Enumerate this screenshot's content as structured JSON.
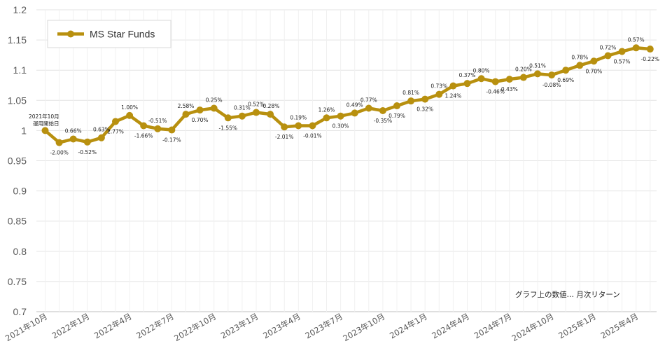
{
  "chart_data": {
    "type": "line",
    "title": "",
    "xlabel": "",
    "ylabel": "",
    "ylim": [
      0.7,
      1.2
    ],
    "yticks": [
      "0.7",
      "0.75",
      "0.8",
      "0.85",
      "0.9",
      "0.95",
      "1",
      "1.05",
      "1.1",
      "1.15",
      "1.2"
    ],
    "grid": true,
    "legend_position": "top-left",
    "x_tick_labels": [
      "2021年10月",
      "2022年1月",
      "2022年4月",
      "2022年7月",
      "2022年10月",
      "2023年1月",
      "2023年4月",
      "2023年7月",
      "2023年10月",
      "2024年1月",
      "2024年4月",
      "2024年7月",
      "2024年10月",
      "2025年1月",
      "2025年4月"
    ],
    "annotations": {
      "start": [
        "2021年10月",
        "運用開始日"
      ],
      "note": "グラフ上の数値… 月次リターン"
    },
    "series": [
      {
        "name": "MS Star Funds",
        "color": "#B8900F",
        "x": [
          "2021-10",
          "2021-11",
          "2021-12",
          "2022-01",
          "2022-02",
          "2022-03",
          "2022-04",
          "2022-05",
          "2022-06",
          "2022-07",
          "2022-08",
          "2022-09",
          "2022-10",
          "2022-11",
          "2022-12",
          "2023-01",
          "2023-02",
          "2023-03",
          "2023-04",
          "2023-05",
          "2023-06",
          "2023-07",
          "2023-08",
          "2023-09",
          "2023-10",
          "2023-11",
          "2023-12",
          "2024-01",
          "2024-02",
          "2024-03",
          "2024-04",
          "2024-05",
          "2024-06",
          "2024-07",
          "2024-08",
          "2024-09",
          "2024-10",
          "2024-11",
          "2024-12",
          "2025-01",
          "2025-02",
          "2025-03",
          "2025-04",
          "2025-05"
        ],
        "values": [
          1.0,
          0.98,
          0.986,
          0.981,
          0.988,
          1.015,
          1.025,
          1.008,
          1.003,
          1.001,
          1.027,
          1.034,
          1.037,
          1.021,
          1.024,
          1.03,
          1.027,
          1.006,
          1.008,
          1.008,
          1.021,
          1.024,
          1.029,
          1.037,
          1.033,
          1.041,
          1.049,
          1.052,
          1.06,
          1.074,
          1.078,
          1.086,
          1.081,
          1.085,
          1.088,
          1.094,
          1.092,
          1.1,
          1.108,
          1.115,
          1.124,
          1.131,
          1.137,
          1.135
        ],
        "data_labels": [
          "",
          "-2.00%",
          "0.66%",
          "-0.52%",
          "0.63%",
          "2.77%",
          "1.00%",
          "-1.66%",
          "-0.51%",
          "-0.17%",
          "2.58%",
          "0.70%",
          "0.25%",
          "-1.55%",
          "0.31%",
          "0.52%",
          "-0.28%",
          "-2.01%",
          "0.19%",
          "-0.01%",
          "1.26%",
          "0.30%",
          "0.49%",
          "0.77%",
          "-0.35%",
          "0.79%",
          "0.81%",
          "0.32%",
          "0.73%",
          "1.24%",
          "0.37%",
          "0.80%",
          "-0.46%",
          "0.43%",
          "0.20%",
          "0.51%",
          "-0.08%",
          "0.69%",
          "0.78%",
          "0.70%",
          "0.72%",
          "0.57%",
          "0.57%",
          "-0.22%"
        ]
      }
    ]
  }
}
